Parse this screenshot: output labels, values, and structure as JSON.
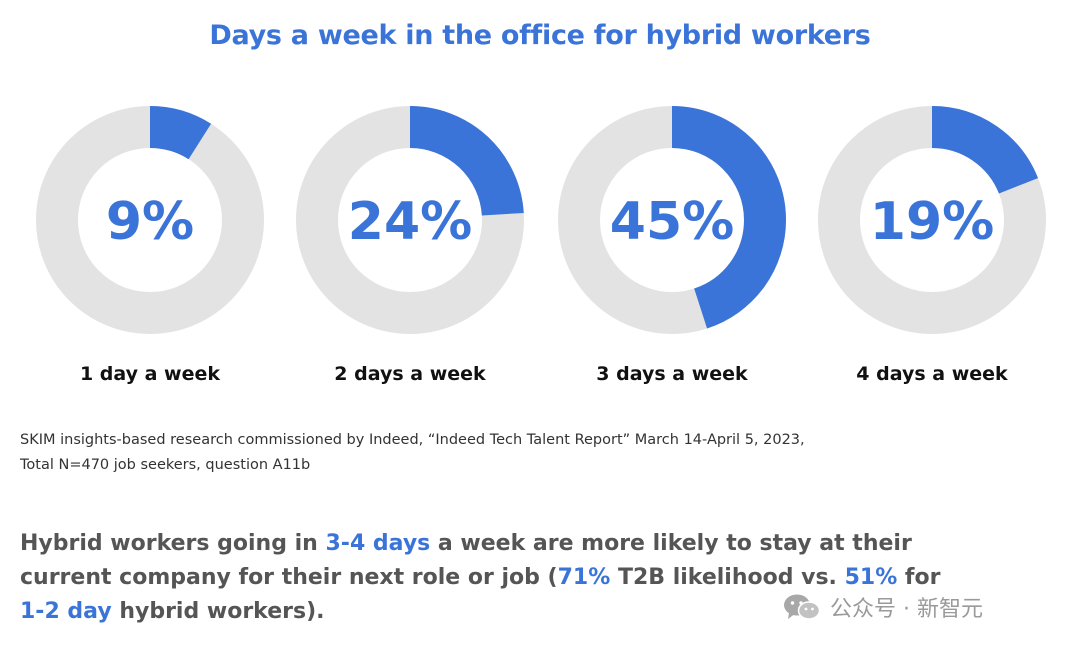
{
  "title": "Days a week in the office for hybrid workers",
  "chart_data": {
    "type": "pie",
    "title": "Days a week in the office for hybrid workers",
    "categories": [
      "1 day a week",
      "2 days a week",
      "3 days a week",
      "4 days a week"
    ],
    "values": [
      9,
      24,
      45,
      19
    ],
    "value_labels": [
      "9%",
      "24%",
      "45%",
      "19%"
    ],
    "style": "donut",
    "colors": {
      "filled": "#3b74d8",
      "track": "#e3e3e3"
    }
  },
  "source": {
    "line1": "SKIM insights-based research commissioned by Indeed, “Indeed Tech Talent Report” March 14-April 5, 2023,",
    "line2": "Total N=470 job seekers, question A11b"
  },
  "headline": {
    "p1": "Hybrid workers going in ",
    "h1": "3-4 days",
    "p2": " a week are more likely to stay at their current company for their next role or job (",
    "h2": "71%",
    "p3": " T2B likelihood vs. ",
    "h3": "51%",
    "p4": " for ",
    "h4": "1-2 day",
    "p5": " hybrid workers)."
  },
  "watermark": {
    "icon": "wechat-icon",
    "text": "公众号 · 新智元"
  }
}
